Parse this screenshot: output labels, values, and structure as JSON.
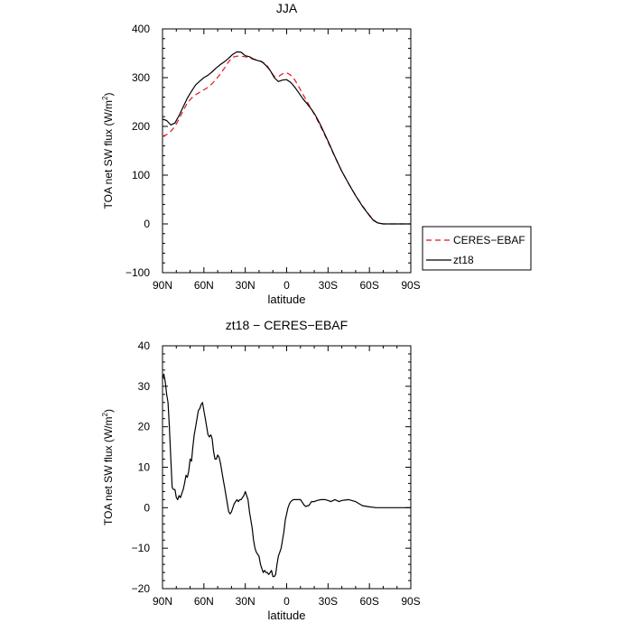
{
  "chart_data": [
    {
      "type": "line",
      "title": "JJA",
      "xlabel": "latitude",
      "ylabel_main": "TOA net SW flux (W/m",
      "ylabel_sup": "2",
      "ylabel_tail": ")",
      "xlim": [
        90,
        -90
      ],
      "ylim": [
        -100,
        400
      ],
      "xticks": [
        {
          "value": 90,
          "label": "90N"
        },
        {
          "value": 60,
          "label": "60N"
        },
        {
          "value": 30,
          "label": "30N"
        },
        {
          "value": 0,
          "label": "0"
        },
        {
          "value": -30,
          "label": "30S"
        },
        {
          "value": -60,
          "label": "60S"
        },
        {
          "value": -90,
          "label": "90S"
        }
      ],
      "yticks": [
        {
          "value": -100,
          "label": "−100"
        },
        {
          "value": 0,
          "label": "0"
        },
        {
          "value": 100,
          "label": "100"
        },
        {
          "value": 200,
          "label": "200"
        },
        {
          "value": 300,
          "label": "300"
        },
        {
          "value": 400,
          "label": "400"
        }
      ],
      "legend_position": "outside-right",
      "series": [
        {
          "name": "CERES−EBAF",
          "color": "#e8141e",
          "dash": "6,4",
          "x": [
            90,
            87,
            84,
            81,
            78,
            75,
            72,
            69,
            66,
            63,
            60,
            57,
            54,
            51,
            48,
            45,
            42,
            39,
            36,
            33,
            30,
            27,
            24,
            21,
            18,
            15,
            12,
            9,
            6,
            3,
            0,
            -3,
            -6,
            -9,
            -12,
            -15,
            -18,
            -21,
            -24,
            -27,
            -30,
            -35,
            -40,
            -45,
            -50,
            -55,
            -60,
            -63,
            -66,
            -70,
            -75,
            -80,
            -85,
            -90
          ],
          "y": [
            180,
            183,
            190,
            200,
            215,
            232,
            248,
            258,
            265,
            270,
            275,
            280,
            288,
            297,
            308,
            320,
            333,
            342,
            344,
            344,
            343,
            340,
            338,
            336,
            332,
            328,
            315,
            302,
            302,
            308,
            310,
            305,
            295,
            280,
            265,
            250,
            235,
            220,
            203,
            186,
            168,
            137,
            108,
            82,
            58,
            37,
            18,
            8,
            2,
            0,
            0,
            0,
            0,
            0
          ]
        },
        {
          "name": "zt18",
          "color": "#000000",
          "dash": "",
          "x": [
            90,
            87,
            84,
            81,
            78,
            75,
            72,
            69,
            66,
            63,
            60,
            57,
            54,
            51,
            48,
            45,
            42,
            39,
            36,
            33,
            30,
            27,
            24,
            21,
            18,
            15,
            12,
            9,
            6,
            3,
            0,
            -3,
            -6,
            -9,
            -12,
            -15,
            -18,
            -21,
            -24,
            -27,
            -30,
            -35,
            -40,
            -45,
            -50,
            -55,
            -60,
            -63,
            -66,
            -70,
            -75,
            -80,
            -85,
            -90
          ],
          "y": [
            215,
            212,
            203,
            207,
            222,
            240,
            258,
            272,
            285,
            293,
            300,
            305,
            312,
            320,
            327,
            333,
            340,
            348,
            353,
            352,
            345,
            343,
            338,
            335,
            333,
            325,
            315,
            300,
            292,
            295,
            296,
            290,
            280,
            268,
            256,
            246,
            235,
            222,
            206,
            188,
            170,
            138,
            108,
            82,
            58,
            36,
            17,
            7,
            2,
            0,
            0,
            0,
            0,
            0
          ]
        }
      ]
    },
    {
      "type": "line",
      "title": "zt18 − CERES−EBAF",
      "xlabel": "latitude",
      "ylabel_main": "TOA net SW flux (W/m",
      "ylabel_sup": "2",
      "ylabel_tail": ")",
      "xlim": [
        90,
        -90
      ],
      "ylim": [
        -20,
        40
      ],
      "xticks": [
        {
          "value": 90,
          "label": "90N"
        },
        {
          "value": 60,
          "label": "60N"
        },
        {
          "value": 30,
          "label": "30N"
        },
        {
          "value": 0,
          "label": "0"
        },
        {
          "value": -30,
          "label": "30S"
        },
        {
          "value": -60,
          "label": "60S"
        },
        {
          "value": -90,
          "label": "90S"
        }
      ],
      "yticks": [
        {
          "value": -20,
          "label": "−20"
        },
        {
          "value": -10,
          "label": "−10"
        },
        {
          "value": 0,
          "label": "0"
        },
        {
          "value": 10,
          "label": "10"
        },
        {
          "value": 20,
          "label": "20"
        },
        {
          "value": 30,
          "label": "30"
        },
        {
          "value": 40,
          "label": "40"
        }
      ],
      "series": [
        {
          "color": "#000000",
          "x": [
            90,
            89,
            88,
            87,
            86,
            85,
            84,
            83,
            82,
            81,
            80,
            79,
            78,
            77,
            76,
            75,
            74,
            73,
            72,
            71,
            70,
            69,
            68,
            67,
            66,
            65,
            64,
            63,
            62,
            61,
            60,
            59,
            58,
            57,
            56,
            55,
            54,
            53,
            52,
            51,
            50,
            49,
            48,
            47,
            46,
            45,
            44,
            43,
            42,
            41,
            40,
            39,
            38,
            37,
            36,
            35,
            34,
            33,
            32,
            31,
            30,
            29,
            28,
            27,
            26,
            25,
            24,
            23,
            22,
            21,
            20,
            19,
            18,
            17,
            16,
            15,
            14,
            13,
            12,
            11,
            10,
            9,
            8,
            7,
            6,
            5,
            4,
            3,
            2,
            1,
            0,
            -1,
            -2,
            -3,
            -4,
            -5,
            -6,
            -7,
            -8,
            -9,
            -10,
            -11,
            -12,
            -13,
            -14,
            -15,
            -16,
            -17,
            -18,
            -20,
            -22,
            -25,
            -28,
            -30,
            -32,
            -35,
            -38,
            -40,
            -45,
            -50,
            -55,
            -60,
            -65,
            -70,
            -75,
            -80,
            -85,
            -90
          ],
          "y": [
            32,
            33,
            31,
            28,
            26,
            20,
            12,
            5,
            4.5,
            4.5,
            2.5,
            2,
            3,
            2.5,
            3.5,
            4.5,
            6,
            8,
            7.5,
            9,
            12,
            11.5,
            15,
            18,
            20,
            22,
            24,
            24.5,
            25.5,
            26,
            24,
            22,
            20,
            18,
            17.5,
            18,
            17,
            14,
            12,
            12,
            13,
            12.5,
            11,
            9,
            7,
            5,
            3,
            1,
            -1,
            -1.5,
            -1,
            0,
            1,
            1.5,
            2,
            1.5,
            2,
            2,
            2.5,
            3,
            4,
            3,
            2,
            -1,
            -3,
            -5,
            -8,
            -10,
            -11,
            -11.5,
            -12,
            -14,
            -15,
            -16,
            -15.5,
            -16,
            -16,
            -16.5,
            -16,
            -15.5,
            -17,
            -17,
            -16.5,
            -14,
            -12,
            -11,
            -10,
            -8,
            -6,
            -3,
            -1.5,
            0,
            1,
            1.5,
            1.8,
            2,
            2,
            2,
            2,
            2,
            2,
            1.5,
            1,
            0.5,
            0.3,
            0.5,
            0.5,
            1,
            1.5,
            1.5,
            1.8,
            2,
            2,
            1.8,
            1.5,
            2,
            1.5,
            1.8,
            2,
            1.5,
            0.5,
            0.2,
            0,
            0,
            0,
            0,
            0,
            0
          ]
        }
      ]
    }
  ]
}
